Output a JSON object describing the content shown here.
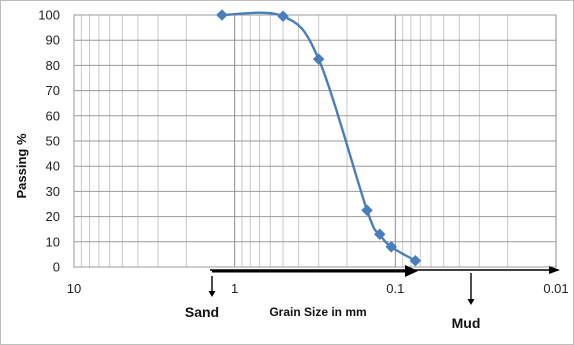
{
  "chart_data": {
    "type": "line",
    "xscale": "log-reversed",
    "xlim": [
      10,
      0.01
    ],
    "ylim": [
      0,
      100
    ],
    "xticks": [
      "10",
      "1",
      "0.1",
      "0.01"
    ],
    "yticks": [
      "0",
      "10",
      "20",
      "30",
      "40",
      "50",
      "60",
      "70",
      "80",
      "90",
      "100"
    ],
    "xlabel": "Grain Size in mm",
    "ylabel": "Passing %",
    "grid": true,
    "series": [
      {
        "color": "#4a7ebb",
        "points": [
          {
            "x": 1.2,
            "y": 100
          },
          {
            "x": 0.5,
            "y": 99.5
          },
          {
            "x": 0.3,
            "y": 82.5
          },
          {
            "x": 0.15,
            "y": 22.5
          },
          {
            "x": 0.125,
            "y": 13
          },
          {
            "x": 0.106,
            "y": 8
          },
          {
            "x": 0.075,
            "y": 2.5
          }
        ]
      }
    ],
    "annotations": [
      {
        "text": "Sand",
        "direction": "down"
      },
      {
        "text": "Mud",
        "direction": "down"
      }
    ]
  }
}
